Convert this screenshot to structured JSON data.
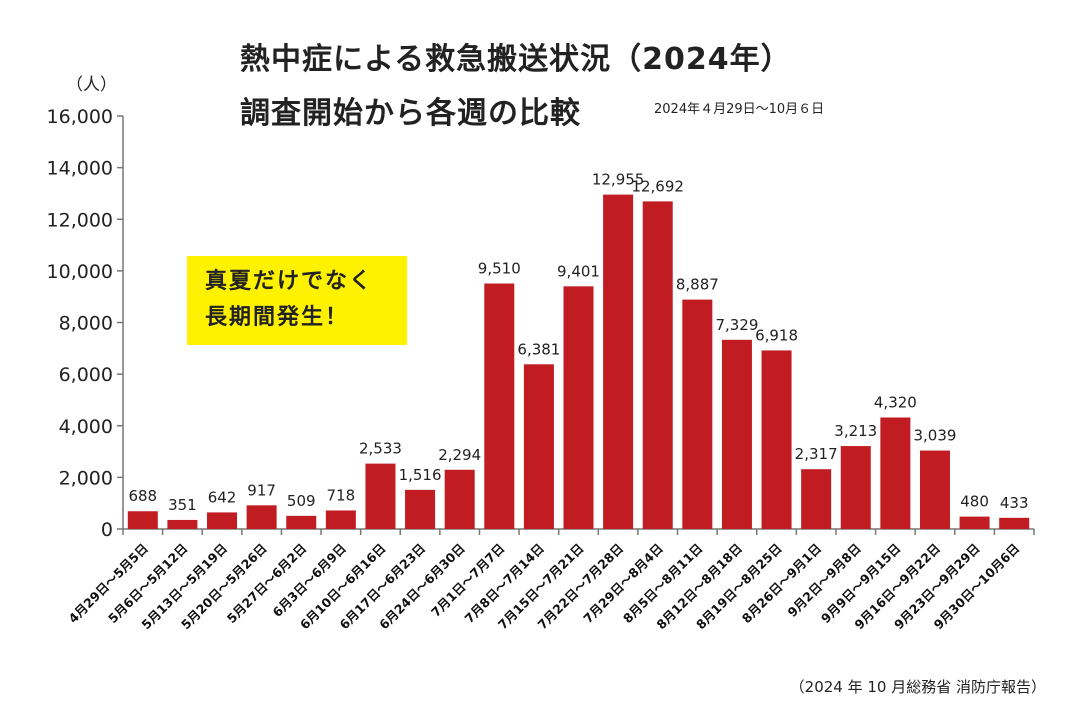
{
  "chart_data": {
    "type": "bar",
    "title": "熱中症による救急搬送状況（2024年）",
    "title_line2": "調査開始から各週の比較",
    "subtitle": "2024年４月29日～10月６日",
    "ylabel": "（人）",
    "ylim": [
      0,
      16000
    ],
    "yticks": [
      "0",
      "2,000",
      "4,000",
      "6,000",
      "8,000",
      "10,000",
      "12,000",
      "14,000",
      "16,000"
    ],
    "grid": false,
    "bar_color": "#c01c22",
    "categories": [
      "4月29日～5月5日",
      "5月6日～5月12日",
      "5月13日～5月19日",
      "5月20日～5月26日",
      "5月27日～6月2日",
      "6月3日～6月9日",
      "6月10日～6月16日",
      "6月17日～6月23日",
      "6月24日～6月30日",
      "7月1日～7月7日",
      "7月8日～7月14日",
      "7月15日～7月21日",
      "7月22日～7月28日",
      "7月29日～8月4日",
      "8月5日～8月11日",
      "8月12日～8月18日",
      "8月19日～8月25日",
      "8月26日～9月1日",
      "9月2日～9月8日",
      "9月9日～9月15日",
      "9月16日～9月22日",
      "9月23日～9月29日",
      "9月30日～10月6日"
    ],
    "values": [
      688,
      351,
      642,
      917,
      509,
      718,
      2533,
      1516,
      2294,
      9510,
      6381,
      9401,
      12955,
      12692,
      8887,
      7329,
      6918,
      2317,
      3213,
      4320,
      3039,
      480,
      433
    ],
    "data_labels": [
      "688",
      "351",
      "642",
      "917",
      "509",
      "718",
      "2,533",
      "1,516",
      "2,294",
      "9,510",
      "6,381",
      "9,401",
      "12,955",
      "12,692",
      "8,887",
      "7,329",
      "6,918",
      "2,317",
      "3,213",
      "4,320",
      "3,039",
      "480",
      "433"
    ],
    "annotation": {
      "line1": "真夏だけでなく",
      "line2": "長期間発生！",
      "color": "#fff200"
    },
    "source": "（2024 年 10 月総務省 消防庁報告）"
  }
}
